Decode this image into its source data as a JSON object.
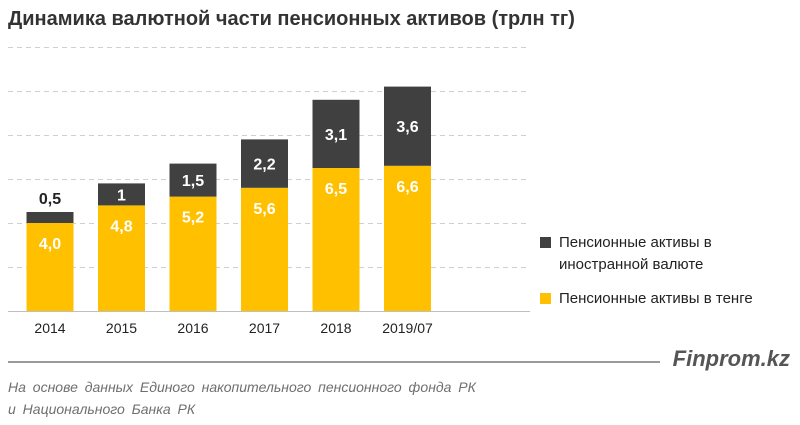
{
  "title": "Динамика валютной части пенсионных активов (трлн тг)",
  "chart_data": {
    "type": "bar",
    "stacked": true,
    "title": "Динамика валютной части пенсионных активов (трлн тг)",
    "categories": [
      "2014",
      "2015",
      "2016",
      "2017",
      "2018",
      "2019/07"
    ],
    "series": [
      {
        "name": "Пенсионные активы в тенге",
        "values": [
          4.0,
          4.8,
          5.2,
          5.6,
          6.5,
          6.6
        ],
        "labels": [
          "4,0",
          "4,8",
          "5,2",
          "5,6",
          "6,5",
          "6,6"
        ],
        "color": "#FFC000",
        "label_color": "#ffffff"
      },
      {
        "name": "Пенсионные активы в иностранной валюте",
        "values": [
          0.5,
          1.0,
          1.5,
          2.2,
          3.1,
          3.6
        ],
        "labels": [
          "0,5",
          "1",
          "1,5",
          "2,2",
          "3,1",
          "3,6"
        ],
        "color": "#404040",
        "label_color": "#ffffff",
        "outside_label_color": "#222222"
      }
    ],
    "ylim": [
      0,
      12
    ],
    "grid": true,
    "legend": "right",
    "xlabel": "",
    "ylabel": ""
  },
  "legend": {
    "foreign_label": "Пенсионные активы в иностранной валюте",
    "tenge_label": "Пенсионные активы в тенге",
    "foreign_color": "#404040",
    "tenge_color": "#FFC000"
  },
  "footer": {
    "brand": "Finprom.kz",
    "note_line1": "На основе данных Единого накопительного пенсионного фонда РК",
    "note_line2": "и Национального Банка РК"
  }
}
